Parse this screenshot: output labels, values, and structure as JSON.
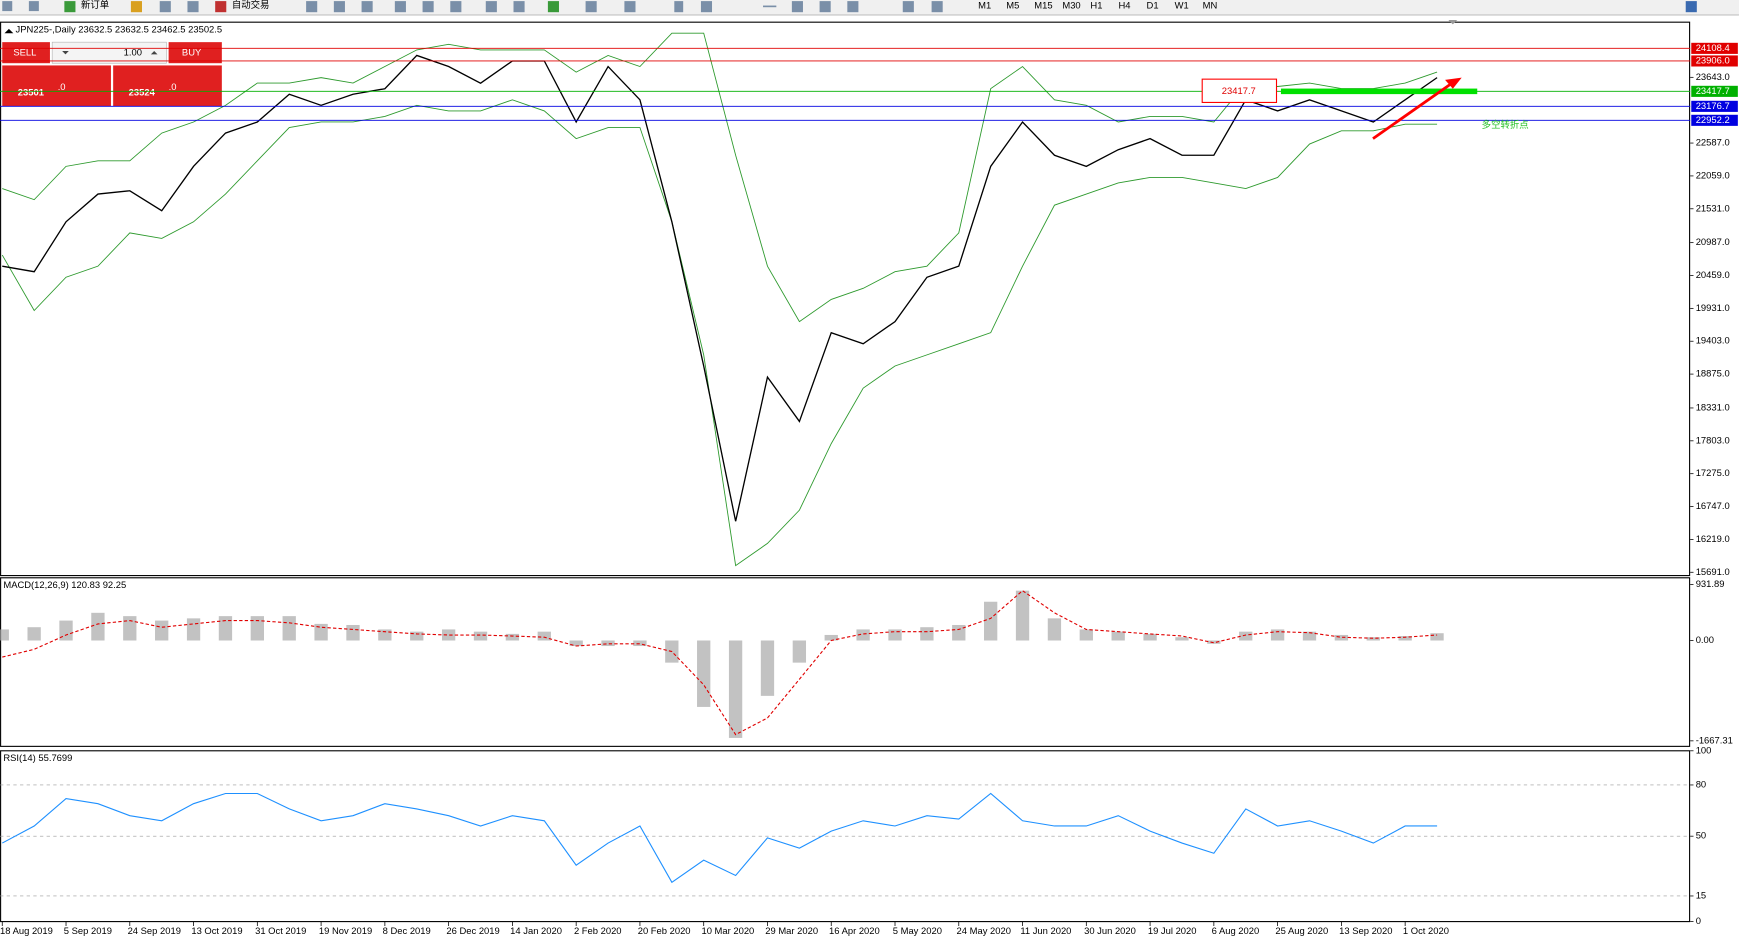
{
  "toolbar": {
    "new_order": "新订单",
    "auto_trading": "自动交易",
    "timeframes": [
      "M1",
      "M5",
      "M15",
      "M30",
      "H1",
      "H4",
      "D1",
      "W1",
      "MN"
    ]
  },
  "trade_panel": {
    "sell": "SELL",
    "buy": "BUY",
    "volume": "1.00",
    "bid_main": "23501",
    "bid_fraction": ".0",
    "ask_main": "23524",
    "ask_fraction": ".0"
  },
  "chart_data": [
    {
      "type": "line",
      "title": "JPN225-,Daily 23632.5 23632.5 23462.5 23502.5",
      "color": "#000000",
      "band_color": "#2e9a2e",
      "values": [
        20609,
        20520,
        21321,
        21767,
        21821,
        21500,
        22213,
        22747,
        22926,
        23371,
        23193,
        23371,
        23460,
        23995,
        23817,
        23549,
        23906,
        23906,
        22926,
        23817,
        23282,
        21321,
        19005,
        16511,
        18827,
        18114,
        19540,
        19362,
        19718,
        20431,
        20609,
        22213,
        22926,
        22391,
        22213,
        22480,
        22658,
        22391,
        22391,
        23282,
        23104,
        23282,
        23104,
        22926,
        23282,
        23639
      ],
      "upper_band": [
        21857,
        21679,
        22213,
        22302,
        22302,
        22748,
        22926,
        23193,
        23550,
        23550,
        23639,
        23550,
        23817,
        24084,
        24173,
        24084,
        24084,
        24084,
        23728,
        23995,
        23817,
        24352,
        24352,
        22391,
        20609,
        19718,
        20075,
        20253,
        20520,
        20609,
        21144,
        23461,
        23817,
        23282,
        23193,
        22926,
        23015,
        23015,
        22926,
        23550,
        23496,
        23550,
        23461,
        23461,
        23550,
        23728
      ],
      "lower_band": [
        20788,
        19897,
        20431,
        20609,
        21144,
        21055,
        21322,
        21768,
        22302,
        22837,
        22926,
        22926,
        23015,
        23193,
        23104,
        23104,
        23282,
        23104,
        22659,
        22837,
        22837,
        21322,
        19184,
        15798,
        16154,
        16689,
        17758,
        18649,
        19006,
        19184,
        19362,
        19540,
        20609,
        21589,
        21768,
        21946,
        22035,
        22035,
        21946,
        21857,
        22035,
        22570,
        22783,
        22783,
        22890,
        22890
      ],
      "ylim": [
        15638,
        24529
      ],
      "yticks": [
        {
          "value": 23643,
          "label": "23643.0"
        },
        {
          "value": 22587,
          "label": "22587.0"
        },
        {
          "value": 22059,
          "label": "22059.0"
        },
        {
          "value": 21531,
          "label": "21531.0"
        },
        {
          "value": 20987,
          "label": "20987.0"
        },
        {
          "value": 20459,
          "label": "20459.0"
        },
        {
          "value": 19931,
          "label": "19931.0"
        },
        {
          "value": 19403,
          "label": "19403.0"
        },
        {
          "value": 18875,
          "label": "18875.0"
        },
        {
          "value": 18331,
          "label": "18331.0"
        },
        {
          "value": 17803,
          "label": "17803.0"
        },
        {
          "value": 17275,
          "label": "17275.0"
        },
        {
          "value": 16747,
          "label": "16747.0"
        },
        {
          "value": 16219,
          "label": "16219.0"
        },
        {
          "value": 15691,
          "label": "15691.0"
        }
      ],
      "levels": [
        {
          "value": 24108.4,
          "label": "24108.4",
          "color": "#e00000"
        },
        {
          "value": 23906,
          "label": "23906.0",
          "color": "#e00000"
        },
        {
          "value": 23417.7,
          "label": "23417.7",
          "color": "#00b000"
        },
        {
          "value": 23176.7,
          "label": "23176.7",
          "color": "#0000e0"
        },
        {
          "value": 22952.2,
          "label": "22952.2",
          "color": "#0000e0"
        }
      ],
      "annotations": [
        "23417.7",
        "多空转折点"
      ]
    },
    {
      "type": "bar",
      "title": "MACD(12,26,9) 120.83 92.25",
      "color": "#a8a8a8",
      "signal_color": "#e00000",
      "values": [
        184,
        221,
        331,
        460,
        405,
        331,
        368,
        405,
        405,
        405,
        276,
        258,
        184,
        147,
        184,
        147,
        110,
        147,
        -92,
        -92,
        -92,
        -368,
        -1104,
        -1619,
        -920,
        -368,
        92,
        184,
        184,
        221,
        258,
        644,
        828,
        368,
        184,
        147,
        110,
        55,
        -55,
        147,
        184,
        147,
        92,
        55,
        74,
        121
      ],
      "signal": [
        -276,
        -147,
        92,
        276,
        331,
        221,
        276,
        331,
        331,
        294,
        221,
        184,
        147,
        110,
        92,
        92,
        74,
        55,
        -92,
        -55,
        -55,
        -184,
        -736,
        -1564,
        -1288,
        -644,
        0,
        110,
        147,
        147,
        184,
        368,
        828,
        460,
        184,
        147,
        110,
        74,
        -37,
        92,
        147,
        129,
        55,
        37,
        55,
        92
      ],
      "ylim": [
        -1759,
        1042
      ],
      "yticks": [
        931.89,
        {
          "value": 0,
          "label": "0.00"
        },
        -1667.31
      ]
    },
    {
      "type": "line",
      "title": "RSI(14) 55.7699",
      "color": "#1e90ff",
      "categories": [
        "18 Aug 2019",
        null,
        "5 Sep 2019",
        null,
        "24 Sep 2019",
        null,
        "13 Oct 2019",
        null,
        "31 Oct 2019",
        null,
        "19 Nov 2019",
        null,
        "8 Dec 2019",
        null,
        "26 Dec 2019",
        null,
        "14 Jan 2020",
        null,
        "2 Feb 2020",
        null,
        "20 Feb 2020",
        null,
        "10 Mar 2020",
        null,
        "29 Mar 2020",
        null,
        "16 Apr 2020",
        null,
        "5 May 2020",
        null,
        "24 May 2020",
        null,
        "11 Jun 2020",
        null,
        "30 Jun 2020",
        null,
        "19 Jul 2020",
        null,
        "6 Aug 2020",
        null,
        "25 Aug 2020",
        null,
        "13 Sep 2020",
        null,
        "1 Oct 2020",
        null
      ],
      "values": [
        46,
        56,
        72,
        69,
        62,
        59,
        69,
        75,
        75,
        66,
        59,
        62,
        69,
        66,
        62,
        56,
        62,
        59,
        33,
        46,
        56,
        23,
        36,
        27,
        49,
        43,
        53,
        59,
        56,
        62,
        60,
        75,
        59,
        56,
        56,
        62,
        53,
        46,
        40,
        66,
        56,
        59,
        53,
        46,
        56,
        56
      ],
      "ylim": [
        0,
        100
      ],
      "yticks": [
        100,
        80,
        50,
        15,
        0
      ]
    }
  ]
}
